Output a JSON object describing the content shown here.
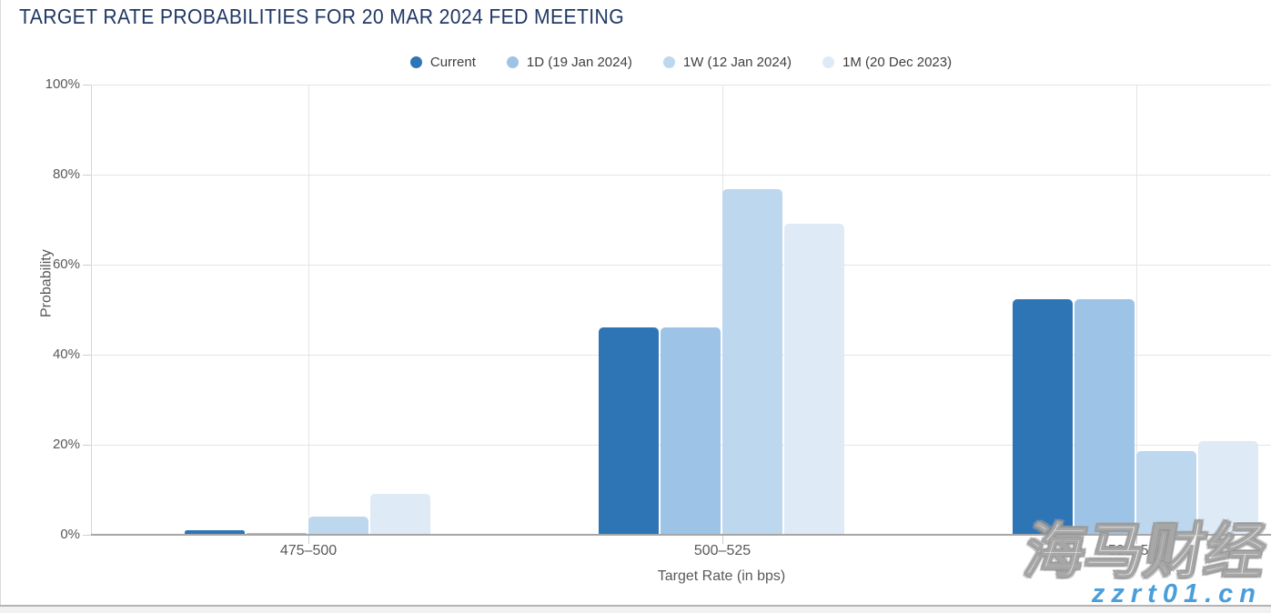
{
  "page": {
    "title": "TARGET RATE PROBABILITIES FOR 20 MAR 2024 FED MEETING"
  },
  "watermark": {
    "brand": "海马财经",
    "url": "zzrt01.cn"
  },
  "colors": {
    "title": "#1F3864",
    "axis_text": "#595959",
    "legend_text": "#404040",
    "gridline": "#e4e4e4",
    "tick": "#cfcfcf",
    "baseline": "#a6a6a6",
    "watermark_url_blue": "#4A9ED9"
  },
  "chart_data": {
    "type": "bar",
    "title": "TARGET RATE PROBABILITIES FOR 20 MAR 2024 FED MEETING",
    "categories": [
      "475–500",
      "500–525",
      "525–550"
    ],
    "series": [
      {
        "name": "Current",
        "color": "#2E75B6",
        "values": [
          1.0,
          46.0,
          52.3
        ]
      },
      {
        "name": "1D (19 Jan 2024)",
        "color": "#9DC3E6",
        "values": [
          0.5,
          46.0,
          52.3
        ]
      },
      {
        "name": "1W (12 Jan 2024)",
        "color": "#BDD7EE",
        "values": [
          4.0,
          76.7,
          18.6
        ]
      },
      {
        "name": "1M (20 Dec 2023)",
        "color": "#DEEAF6",
        "values": [
          9.1,
          69.1,
          20.9
        ]
      }
    ],
    "xlabel": "Target Rate (in bps)",
    "ylabel": "Probability",
    "ylim": [
      0,
      100
    ],
    "yticks": [
      "0%",
      "20%",
      "40%",
      "60%",
      "80%",
      "100%"
    ],
    "legend_position": "top",
    "grid": true
  }
}
